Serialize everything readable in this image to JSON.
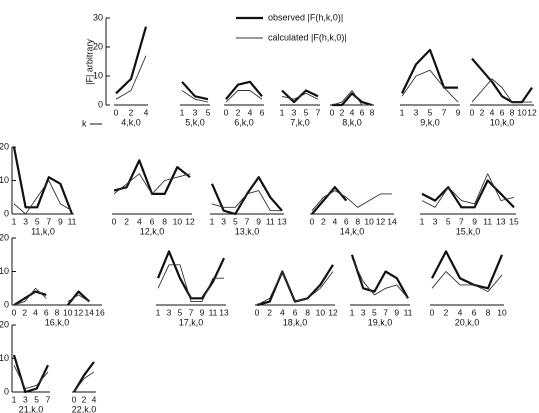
{
  "chart_data": {
    "type": "line",
    "ylabel": "|F| arbitrary",
    "xlabel": "k",
    "legend": [
      {
        "name": "observed |F(h,k,0)|",
        "color": "#111111",
        "width": 2.2
      },
      {
        "name": "calculated |F(h,k,0)|",
        "color": "#333333",
        "width": 0.9
      }
    ],
    "rows": [
      {
        "ylim": [
          0,
          30
        ],
        "yticks": [
          0,
          10,
          20,
          30
        ],
        "panels": [
          {
            "label": "4,k,0",
            "x": [
              0,
              2,
              4
            ],
            "observed": [
              4,
              9,
              27
            ],
            "calculated": [
              2,
              5,
              17
            ]
          },
          {
            "label": "5,k,0",
            "x": [
              1,
              3,
              5
            ],
            "observed": [
              8,
              3,
              2
            ],
            "calculated": [
              5,
              2,
              1
            ]
          },
          {
            "label": "6,k,0",
            "x": [
              0,
              2,
              4,
              6
            ],
            "observed": [
              2,
              7,
              8,
              3
            ],
            "calculated": [
              1,
              5,
              5,
              2
            ]
          },
          {
            "label": "7,k,0",
            "x": [
              1,
              3,
              5,
              7
            ],
            "observed": [
              5,
              1,
              5,
              3
            ],
            "calculated": [
              3,
              2,
              4,
              2
            ]
          },
          {
            "label": "8,k,0",
            "x": [
              0,
              2,
              4,
              6,
              8
            ],
            "observed": [
              0,
              0,
              4,
              1,
              0
            ],
            "calculated": [
              0,
              1,
              5,
              0,
              0
            ]
          },
          {
            "label": "9,k,0",
            "x": [
              1,
              3,
              5,
              7,
              9
            ],
            "observed": [
              4,
              14,
              19,
              6,
              6
            ],
            "calculated": [
              3,
              10,
              12,
              6,
              1
            ]
          },
          {
            "label": "10,k,0",
            "x": [
              0,
              2,
              4,
              6,
              8,
              10,
              12
            ],
            "observed": [
              16,
              12,
              8,
              3,
              1,
              1,
              6
            ],
            "calculated": [
              1,
              5,
              9,
              6,
              1,
              1,
              1
            ]
          }
        ]
      },
      {
        "ylim": [
          0,
          20
        ],
        "yticks": [
          0,
          10,
          20
        ],
        "panels": [
          {
            "label": "11,k,0",
            "x": [
              1,
              3,
              5,
              7,
              9,
              11
            ],
            "observed": [
              20,
              2,
              2,
              11,
              9,
              0
            ],
            "calculated": [
              3,
              0,
              5,
              10,
              3,
              1
            ]
          },
          {
            "label": "12,k,0",
            "x": [
              0,
              2,
              4,
              6,
              8,
              10,
              12
            ],
            "observed": [
              7,
              8,
              16,
              6,
              6,
              14,
              11
            ],
            "calculated": [
              6,
              9,
              12,
              6,
              10,
              11,
              12
            ]
          },
          {
            "label": "13,k,0",
            "x": [
              1,
              3,
              5,
              7,
              9,
              11,
              13
            ],
            "observed": [
              9,
              1,
              0,
              6,
              11,
              5,
              1
            ],
            "calculated": [
              3,
              2,
              2,
              6,
              7,
              1,
              1
            ]
          },
          {
            "label": "14,k,0",
            "x": [
              0,
              2,
              4,
              6,
              8,
              10,
              12,
              14
            ],
            "observed": [
              0,
              4,
              8,
              4,
              null,
              null,
              null,
              null
            ],
            "calculated": [
              1,
              5,
              7,
              5,
              2,
              4,
              6,
              6
            ]
          },
          {
            "label": "15,k,0",
            "x": [
              1,
              3,
              5,
              7,
              9,
              11,
              13,
              15
            ],
            "observed": [
              6,
              4,
              8,
              2,
              2,
              10,
              6,
              2
            ],
            "calculated": [
              4,
              2,
              8,
              4,
              3,
              12,
              4,
              5
            ]
          }
        ]
      },
      {
        "ylim": [
          0,
          20
        ],
        "yticks": [
          0,
          10,
          20
        ],
        "panels": [
          {
            "label": "16,k,0",
            "x": [
              0,
              2,
              4,
              6,
              8,
              10,
              12,
              14,
              16
            ],
            "observed": [
              0,
              2,
              4,
              3,
              null,
              0,
              4,
              1,
              null
            ],
            "calculated": [
              0,
              1,
              5,
              2,
              null,
              1,
              3,
              1,
              null
            ]
          },
          {
            "label": "17,k,0",
            "x": [
              1,
              3,
              5,
              7,
              9,
              11,
              13
            ],
            "observed": [
              8,
              16,
              8,
              2,
              2,
              7,
              14
            ],
            "calculated": [
              5,
              12,
              12,
              1,
              1,
              8,
              8
            ]
          },
          {
            "label": "18,k,0",
            "x": [
              0,
              2,
              4,
              6,
              8,
              10,
              12
            ],
            "observed": [
              0,
              1,
              10,
              1,
              2,
              6,
              12
            ],
            "calculated": [
              0,
              2,
              10,
              1,
              2,
              5,
              10
            ]
          },
          {
            "label": "19,k,0",
            "x": [
              1,
              3,
              5,
              7,
              9,
              11
            ],
            "observed": [
              15,
              5,
              4,
              10,
              8,
              2
            ],
            "calculated": [
              14,
              7,
              3,
              5,
              6,
              2
            ]
          },
          {
            "label": "20,k,0",
            "x": [
              0,
              2,
              4,
              6,
              8,
              10
            ],
            "observed": [
              8,
              16,
              8,
              6,
              5,
              15
            ],
            "calculated": [
              5,
              10,
              6,
              6,
              4,
              9
            ]
          }
        ]
      },
      {
        "ylim": [
          0,
          20
        ],
        "yticks": [
          0,
          10,
          20
        ],
        "panels": [
          {
            "label": "21,k,0",
            "x": [
              1,
              3,
              5,
              7
            ],
            "observed": [
              11,
              0,
              1,
              8
            ],
            "calculated": [
              8,
              1,
              2,
              6
            ]
          },
          {
            "label": "22,k,0",
            "x": [
              0,
              2,
              4
            ],
            "observed": [
              0,
              5,
              9
            ],
            "calculated": [
              0,
              4,
              6
            ]
          }
        ]
      }
    ]
  }
}
